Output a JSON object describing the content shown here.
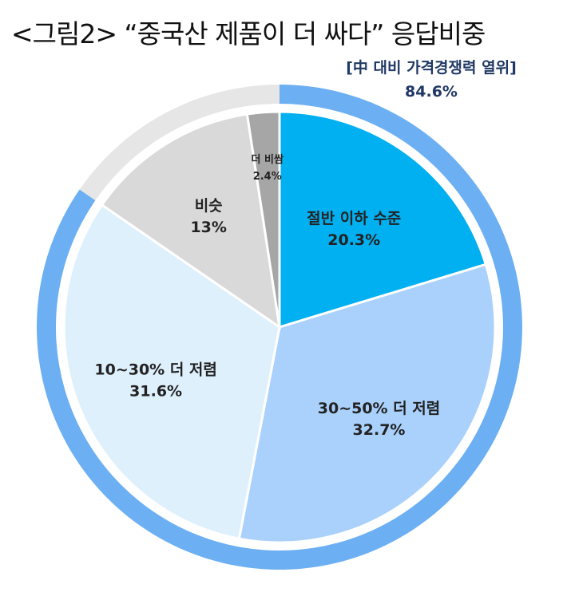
{
  "title": "<그림2> “중국산 제품이 더 싸다” 응답비중",
  "annotation": {
    "label": "[中 대비 가격경쟁력 열위]",
    "value": "84.6%"
  },
  "chart_data": {
    "type": "pie",
    "title": "<그림2> “중국산 제품이 더 싸다” 응답비중",
    "slices": [
      {
        "label": "절반 이하 수준",
        "value": 20.3,
        "display": "20.3%",
        "color": "#00b0f0"
      },
      {
        "label": "30~50% 더 저렴",
        "value": 32.7,
        "display": "32.7%",
        "color": "#a9d1fb"
      },
      {
        "label": "10~30% 더 저렴",
        "value": 31.6,
        "display": "31.6%",
        "color": "#dff0fd"
      },
      {
        "label": "비슷",
        "value": 13,
        "display": "13%",
        "color": "#d9d9d9"
      },
      {
        "label": "더 비쌈",
        "value": 2.4,
        "display": "2.4%",
        "color": "#a6a6a6"
      }
    ],
    "outer_ring": {
      "label": "[中 대비 가격경쟁력 열위]",
      "value": 84.6,
      "color": "#6cb0f3",
      "rest_color": "#e6e6e6"
    }
  }
}
